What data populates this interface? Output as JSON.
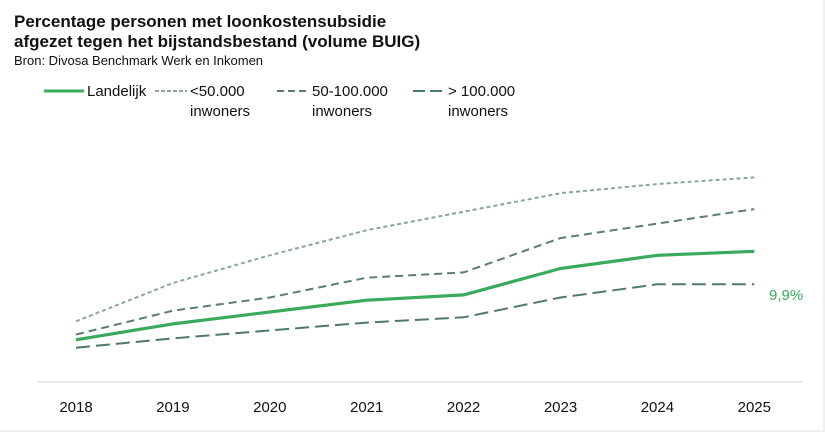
{
  "chart": {
    "title_line1": "Percentage personen met loonkostensubsidie",
    "title_line2": "afgezet tegen het bijstandsbestand (volume BUIG)",
    "source": "Bron: Divosa Benchmark Werk en Inkomen",
    "end_label": "9,9%"
  },
  "legend": [
    {
      "label": "Landelijk",
      "line2": "",
      "style": "solid",
      "color": "#3aaa5c"
    },
    {
      "label": "<50.000",
      "line2": "inwoners",
      "style": "dotted",
      "color": "#8aa89a"
    },
    {
      "label": "50-100.000",
      "line2": "inwoners",
      "style": "dashed",
      "color": "#5a7f6e"
    },
    {
      "label": "> 100.000",
      "line2": "inwoners",
      "style": "long-dash",
      "color": "#4f7a68"
    }
  ],
  "colors": {
    "landelijk": "#3aaa5c",
    "small": "#8aa89a",
    "medium": "#5a7f6e",
    "large": "#4f7a68",
    "axis": "#e6e6e6"
  },
  "chart_data": {
    "type": "line",
    "title": "Percentage personen met loonkostensubsidie afgezet tegen het bijstandsbestand (volume BUIG)",
    "subtitle": "Bron: Divosa Benchmark Werk en Inkomen",
    "xlabel": "",
    "ylabel": "",
    "x": [
      "2018",
      "2019",
      "2020",
      "2021",
      "2022",
      "2023",
      "2024",
      "2025"
    ],
    "series": [
      {
        "name": "Landelijk",
        "values": [
          3.2,
          4.4,
          5.3,
          6.2,
          6.6,
          8.6,
          9.6,
          9.9
        ]
      },
      {
        "name": "<50.000 inwoners",
        "values": [
          4.6,
          7.5,
          9.6,
          11.5,
          12.9,
          14.3,
          15.0,
          15.5
        ]
      },
      {
        "name": "50-100.000 inwoners",
        "values": [
          3.6,
          5.4,
          6.4,
          7.9,
          8.3,
          10.9,
          12.0,
          13.1
        ]
      },
      {
        "name": "> 100.000 inwoners",
        "values": [
          2.6,
          3.3,
          3.9,
          4.5,
          4.9,
          6.4,
          7.4,
          7.4
        ]
      }
    ],
    "annotations": [
      {
        "x": "2025",
        "series": "Landelijk",
        "text": "9,9%"
      }
    ],
    "ylim": [
      0,
      16
    ],
    "y_axis_visible": false,
    "grid": false,
    "legend_position": "top"
  }
}
